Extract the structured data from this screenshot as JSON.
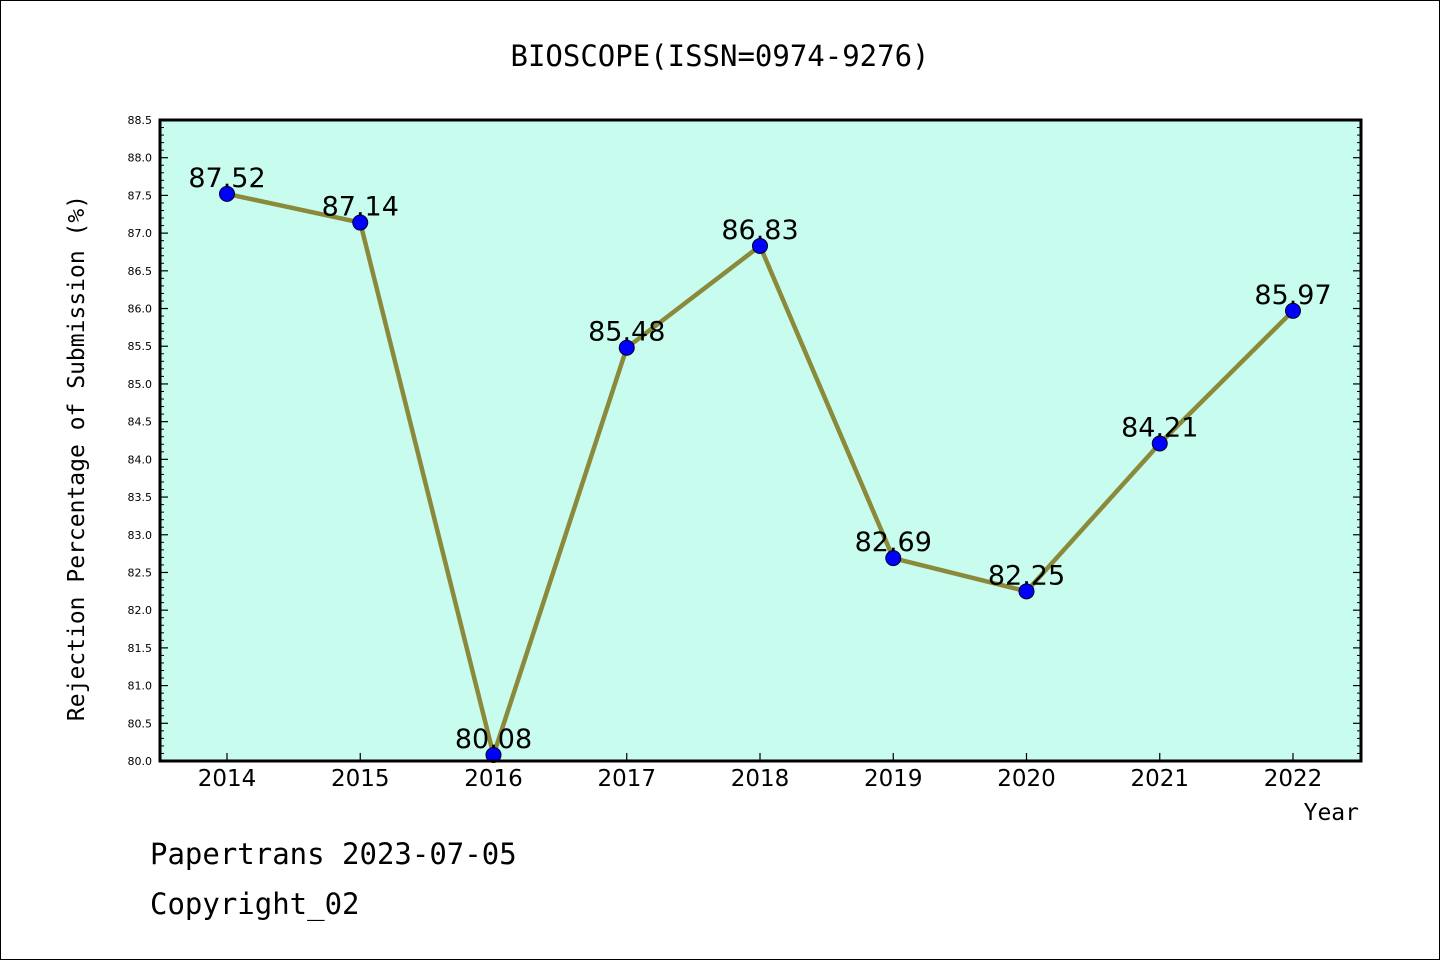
{
  "footer": {
    "line1": "Papertrans 2023-07-05",
    "line2": "Copyright_02"
  },
  "chart_data": {
    "type": "line",
    "title": "BIOSCOPE(ISSN=0974-9276)",
    "xlabel": "Year",
    "ylabel": "Rejection Percentage of Submission (%)",
    "categories": [
      "2014",
      "2015",
      "2016",
      "2017",
      "2018",
      "2019",
      "2020",
      "2021",
      "2022"
    ],
    "values": [
      87.52,
      87.14,
      80.08,
      85.48,
      86.83,
      82.69,
      82.25,
      84.21,
      85.97
    ],
    "data_labels": [
      "87.52",
      "87.14",
      "80.08",
      "85.48",
      "86.83",
      "82.69",
      "82.25",
      "84.21",
      "85.97"
    ],
    "ylim": [
      80.0,
      88.5
    ],
    "yticks": [
      "80.0",
      "80.5",
      "81.0",
      "81.5",
      "82.0",
      "82.5",
      "83.0",
      "83.5",
      "84.0",
      "84.5",
      "85.0",
      "85.5",
      "86.0",
      "86.5",
      "87.0",
      "87.5",
      "88.0",
      "88.5"
    ],
    "colors": {
      "plot_background": "#c8fcee",
      "line": "#8a8a3a",
      "marker": "#0000ff"
    },
    "grid": false,
    "legend": "none"
  }
}
